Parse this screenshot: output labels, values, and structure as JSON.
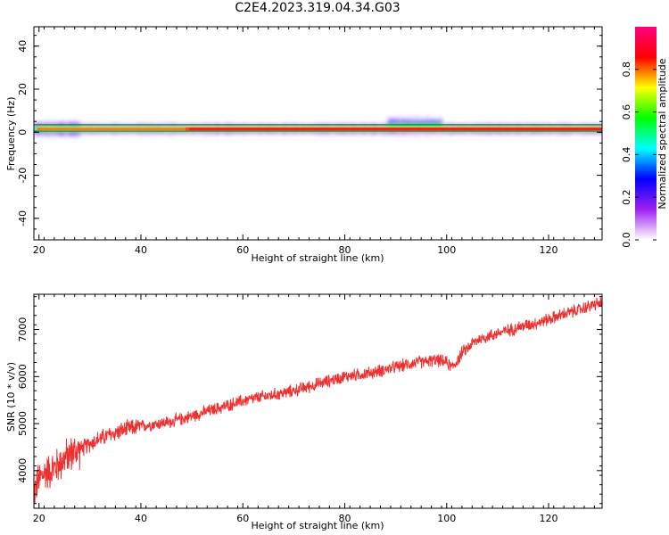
{
  "title": "C2E4.2023.319.04.34.G03",
  "chart_data": [
    {
      "type": "heatmap",
      "xlabel": "Height of straight line (km)",
      "ylabel": "Frequency (Hz)",
      "xlim": [
        19,
        130.5
      ],
      "ylim": [
        -50,
        49
      ],
      "xticks": [
        "20",
        "40",
        "60",
        "80",
        "100",
        "120"
      ],
      "yticks": [
        "40",
        "20",
        "0",
        "-20",
        "-40"
      ],
      "ridge_frequency_hz": 1.5,
      "band_upper_hz": 3.5,
      "band_lower_hz": 0.5,
      "colorbar": {
        "label": "Normalized spectral amplitude",
        "range": [
          0,
          1
        ],
        "ticks": [
          "0.0",
          "0.2",
          "0.4",
          "0.6",
          "0.8"
        ],
        "colors": [
          "#ffffff",
          "#a020f0",
          "#0000ff",
          "#00ffff",
          "#00ff00",
          "#ffff00",
          "#ff0000",
          "#ff0080"
        ]
      },
      "grid": false
    },
    {
      "type": "line",
      "xlabel": "Height of straight line (km)",
      "ylabel": "SNR (10 * v/v)",
      "xlim": [
        19,
        130.5
      ],
      "ylim": [
        3200,
        7750
      ],
      "xticks": [
        "20",
        "40",
        "60",
        "80",
        "100",
        "120"
      ],
      "yticks": [
        "7000",
        "6000",
        "5000",
        "4000"
      ],
      "color": "#ee3030",
      "series": [
        {
          "x": [
            19,
            20,
            21,
            22,
            23,
            24,
            25,
            26,
            27,
            28,
            29,
            30,
            32,
            34,
            36,
            38,
            40,
            42,
            44,
            46,
            48,
            50,
            52,
            54,
            56,
            58,
            60,
            62,
            64,
            66,
            68,
            70,
            72,
            74,
            76,
            78,
            80,
            82,
            84,
            86,
            88,
            90,
            92,
            94,
            96,
            98,
            100,
            101,
            102,
            103,
            104,
            105,
            106,
            108,
            110,
            112,
            114,
            116,
            118,
            120,
            122,
            124,
            126,
            128,
            130
          ],
          "y": [
            3550,
            3800,
            3950,
            4000,
            4050,
            4150,
            4250,
            4350,
            4400,
            4450,
            4500,
            4580,
            4680,
            4770,
            4840,
            4900,
            4940,
            4980,
            5010,
            5040,
            5100,
            5160,
            5230,
            5290,
            5350,
            5420,
            5480,
            5530,
            5570,
            5610,
            5650,
            5700,
            5760,
            5820,
            5880,
            5940,
            6000,
            6030,
            6060,
            6100,
            6150,
            6200,
            6250,
            6300,
            6320,
            6350,
            6300,
            6200,
            6320,
            6500,
            6600,
            6700,
            6780,
            6850,
            6920,
            6980,
            7050,
            7100,
            7150,
            7220,
            7290,
            7360,
            7420,
            7500,
            7560
          ]
        }
      ],
      "grid": false
    }
  ]
}
